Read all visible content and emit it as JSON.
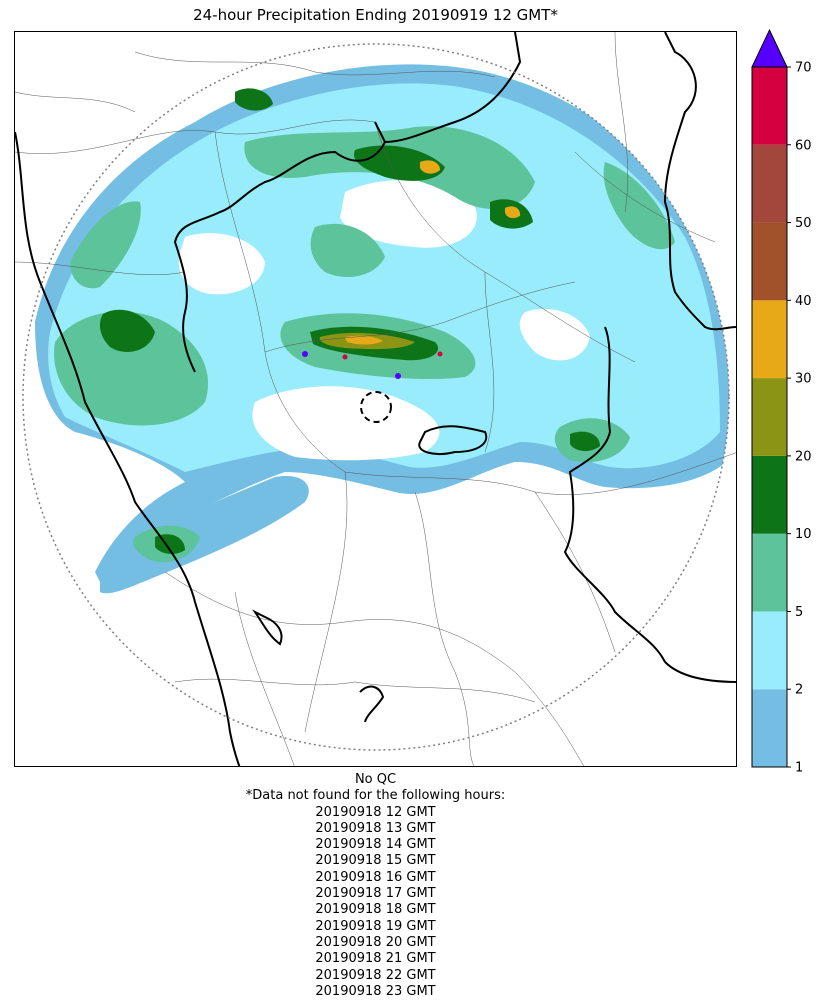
{
  "title": "24-hour Precipitation Ending 20190919 12 GMT*",
  "qc_note": "No QC",
  "missing_header": "*Data not found for the following hours:",
  "missing_hours": [
    "20190918 12 GMT",
    "20190918 13 GMT",
    "20190918 14 GMT",
    "20190918 15 GMT",
    "20190918 16 GMT",
    "20190918 17 GMT",
    "20190918 18 GMT",
    "20190918 19 GMT",
    "20190918 20 GMT",
    "20190918 21 GMT",
    "20190918 22 GMT",
    "20190918 23 GMT"
  ],
  "colorbar": {
    "levels": [
      "1",
      "2",
      "5",
      "10",
      "20",
      "30",
      "40",
      "50",
      "60",
      "70"
    ],
    "colors": [
      "#74bde3",
      "#98ecfb",
      "#5dc39a",
      "#0e7418",
      "#8b9414",
      "#e7a918",
      "#a1522b",
      "#a3473c",
      "#d5003f"
    ],
    "extend_color": "#5500ff"
  },
  "map_colors": {
    "border": "#000000",
    "county": "#555555",
    "range_ring": "#808080",
    "site_ring": "#000000"
  }
}
